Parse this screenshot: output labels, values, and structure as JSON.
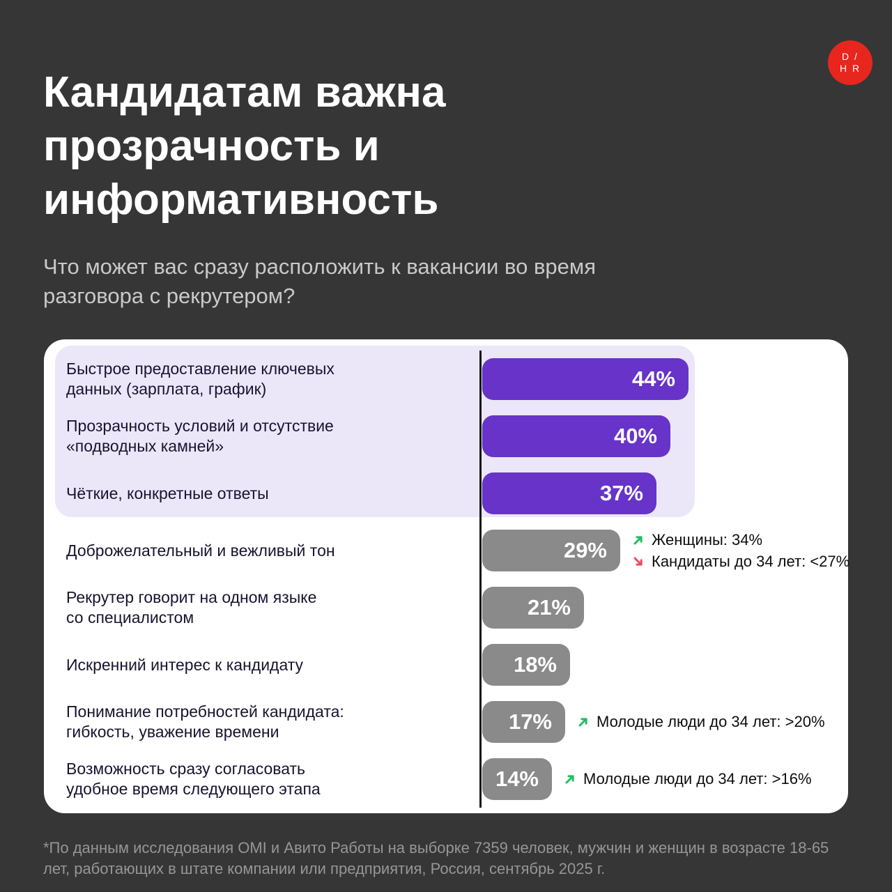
{
  "header": {
    "title": "Кандидатам важна\nпрозрачность и\nинформативность",
    "subtitle": "Что может вас сразу расположить к вакансии во время\nразговора с рекрутером?"
  },
  "logo": {
    "line1": "D /",
    "line2": "H R",
    "bg_color": "#e7261e"
  },
  "chart": {
    "rows": [
      {
        "label": "Быстрое предоставление ключевых\nданных (зарплата, график)",
        "value": 44,
        "pct_label": "44%",
        "group": "purple",
        "annotations": []
      },
      {
        "label": "Прозрачность условий и отсутствие\n«подводных камней»",
        "value": 40,
        "pct_label": "40%",
        "group": "purple",
        "annotations": []
      },
      {
        "label": "Чёткие, конкретные ответы",
        "value": 37,
        "pct_label": "37%",
        "group": "purple",
        "annotations": []
      },
      {
        "label": "Доброжелательный и вежливый тон",
        "value": 29,
        "pct_label": "29%",
        "group": "gray",
        "annotations": [
          {
            "trend": "up",
            "text": "Женщины: 34%"
          },
          {
            "trend": "down",
            "text": "Кандидаты до 34 лет: <27%"
          }
        ]
      },
      {
        "label": "Рекрутер говорит на одном языке\nсо специалистом",
        "value": 21,
        "pct_label": "21%",
        "group": "gray",
        "annotations": []
      },
      {
        "label": "Искренний интерес к кандидату",
        "value": 18,
        "pct_label": "18%",
        "group": "gray",
        "annotations": []
      },
      {
        "label": "Понимание потребностей кандидата:\nгибкость, уважение времени",
        "value": 17,
        "pct_label": "17%",
        "group": "gray",
        "annotations": [
          {
            "trend": "up",
            "text": "Молодые люди до 34 лет: >20%"
          }
        ]
      },
      {
        "label": "Возможность сразу согласовать\nудобное время следующего этапа",
        "value": 14,
        "pct_label": "14%",
        "group": "gray",
        "annotations": [
          {
            "trend": "up",
            "text": "Молодые люди до 34 лет: >16%"
          }
        ]
      }
    ]
  },
  "chart_data": {
    "type": "bar",
    "orientation": "horizontal",
    "title": "Кандидатам важна прозрачность и информативность",
    "subtitle": "Что может вас сразу расположить к вакансии во время разговора с рекрутером?",
    "categories": [
      "Быстрое предоставление ключевых данных (зарплата, график)",
      "Прозрачность условий и отсутствие «подводных камней»",
      "Чёткие, конкретные ответы",
      "Доброжелательный и вежливый тон",
      "Рекрутер говорит на одном языке со специалистом",
      "Искренний интерес к кандидату",
      "Понимание потребностей кандидата: гибкость, уважение времени",
      "Возможность сразу согласовать удобное время следующего этапа"
    ],
    "values": [
      44,
      40,
      37,
      29,
      21,
      18,
      17,
      14
    ],
    "unit": "%",
    "xlim": [
      0,
      50
    ],
    "grid": false,
    "legend": false,
    "top3_highlighted": true,
    "bar_color_top3": "#6733c8",
    "bar_color_rest": "#8a8a8a",
    "annotations": [
      {
        "category": "Доброжелательный и вежливый тон",
        "items": [
          {
            "trend": "up",
            "text": "Женщины: 34%"
          },
          {
            "trend": "down",
            "text": "Кандидаты до 34 лет: <27%"
          }
        ]
      },
      {
        "category": "Понимание потребностей кандидата: гибкость, уважение времени",
        "items": [
          {
            "trend": "up",
            "text": "Молодые люди до 34 лет: >20%"
          }
        ]
      },
      {
        "category": "Возможность сразу согласовать удобное время следующего этапа",
        "items": [
          {
            "trend": "up",
            "text": "Молодые люди до 34 лет: >16%"
          }
        ]
      }
    ]
  },
  "icons": {
    "trend-up-icon": "arrow-up-right ↗ (#22bd60)",
    "trend-down-icon": "arrow-down-right ↘ (#ef4a5e)"
  },
  "colors": {
    "background": "#363636",
    "card": "#ffffff",
    "top3_highlight": "#ece6f9",
    "bar_purple": "#6733c8",
    "bar_gray": "#8a8a8a",
    "trend_up": "#22bd60",
    "trend_down": "#ef4a5e",
    "logo_red": "#e7261e"
  },
  "footer": {
    "note": "*По данным исследования OMI и Авито Работы на выборке 7359 человек, мужчин и женщин в возрасте 18-65 лет, работающих в штате компании или предприятия, Россия, сентябрь 2025 г."
  }
}
